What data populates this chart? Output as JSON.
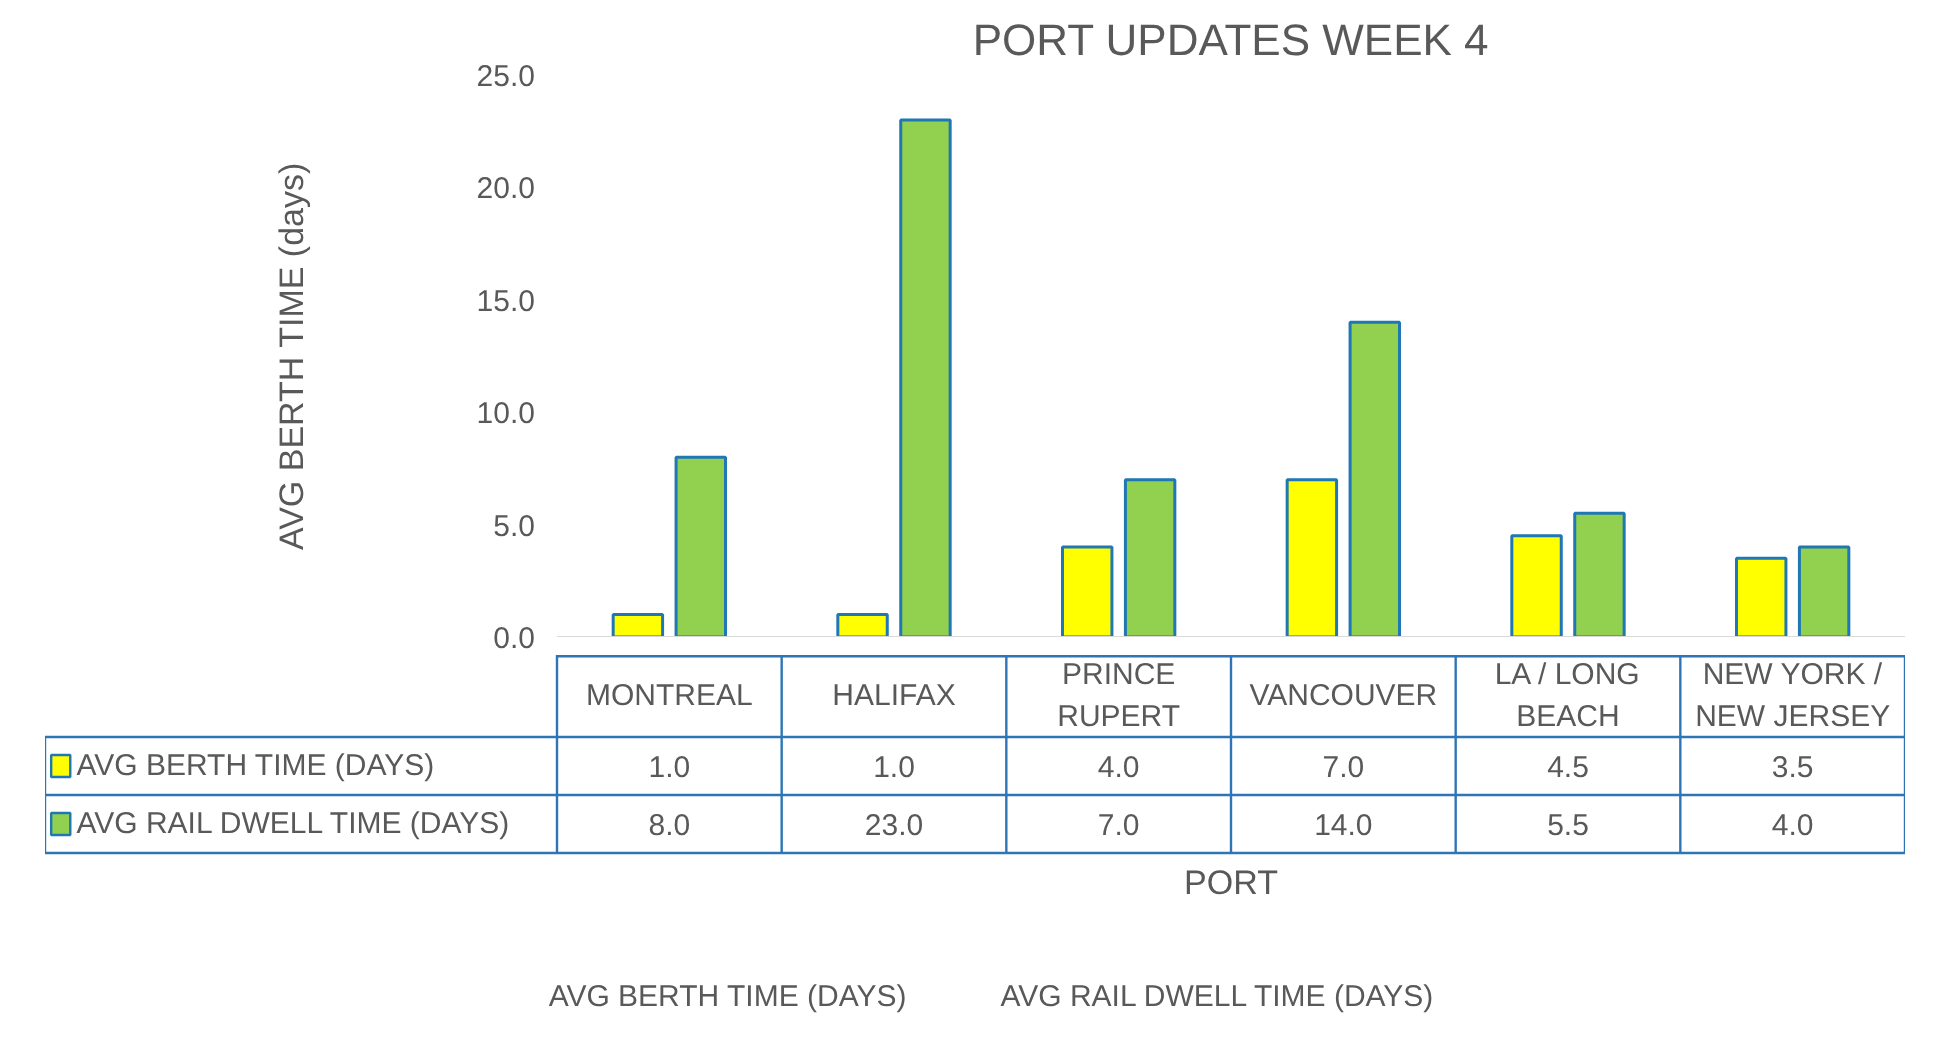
{
  "chart_data": {
    "type": "bar",
    "title": "PORT UPDATES WEEK 4",
    "xlabel": "PORT",
    "ylabel": "AVG BERTH TIME (days)",
    "categories": [
      "MONTREAL",
      "HALIFAX",
      "PRINCE RUPERT",
      "VANCOUVER",
      "LA / LONG BEACH",
      "NEW YORK / NEW JERSEY"
    ],
    "series": [
      {
        "name": "AVG BERTH TIME (DAYS)",
        "color": "#ffff00",
        "values": [
          1.0,
          1.0,
          4.0,
          7.0,
          4.5,
          3.5
        ],
        "value_labels": [
          "1.0",
          "1.0",
          "4.0",
          "7.0",
          "4.5",
          "3.5"
        ]
      },
      {
        "name": "AVG RAIL DWELL TIME (DAYS)",
        "color": "#92d050",
        "values": [
          8.0,
          23.0,
          7.0,
          14.0,
          5.5,
          4.0
        ],
        "value_labels": [
          "8.0",
          "23.0",
          "7.0",
          "14.0",
          "5.5",
          "4.0"
        ]
      }
    ],
    "ylim": [
      0,
      25
    ],
    "yticks": [
      {
        "value": 0,
        "label": "0.0"
      },
      {
        "value": 5,
        "label": "5.0"
      },
      {
        "value": 10,
        "label": "10.0"
      },
      {
        "value": 15,
        "label": "15.0"
      },
      {
        "value": 20,
        "label": "20.0"
      },
      {
        "value": 25,
        "label": "25.0"
      }
    ],
    "grid": false,
    "legend": "bottom"
  }
}
